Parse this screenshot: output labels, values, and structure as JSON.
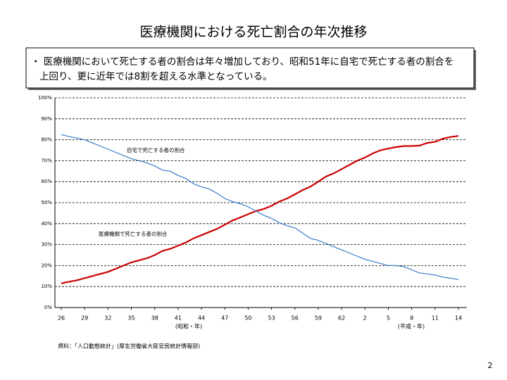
{
  "chart_data": {
    "type": "line",
    "title": "医療機関における死亡割合の年次推移",
    "description": [
      "・ 医療機関において死亡する者の割合は年々増加しており、昭和51年に自宅で死亡する者の割合を",
      "上回り、更に近年では8割を超える水準となっている。"
    ],
    "categories": [
      "26",
      null,
      null,
      "29",
      null,
      null,
      "32",
      null,
      null,
      "35",
      null,
      null,
      "38",
      null,
      null,
      "41",
      null,
      null,
      "44",
      null,
      null,
      "47",
      null,
      null,
      "50",
      null,
      null,
      "53",
      null,
      null,
      "56",
      null,
      null,
      "59",
      null,
      null,
      "62",
      null,
      null,
      "2",
      null,
      null,
      "5",
      null,
      null,
      "8",
      null,
      null,
      "11",
      null,
      null,
      "14"
    ],
    "series": [
      {
        "name": "医療機関で死亡する者の割合",
        "color": "#cc0000",
        "values": [
          11.5,
          12.3,
          13.0,
          14.0,
          15.0,
          16.0,
          17.0,
          18.5,
          20.0,
          21.5,
          22.5,
          23.5,
          25.0,
          27.0,
          28.0,
          29.5,
          31.0,
          33.0,
          34.5,
          36.0,
          37.5,
          39.5,
          41.5,
          43.0,
          44.5,
          46.0,
          47.0,
          48.5,
          50.5,
          52.0,
          54.0,
          56.0,
          57.7,
          60.0,
          62.5,
          64.0,
          66.0,
          68.0,
          70.0,
          71.5,
          73.5,
          75.0,
          75.8,
          76.5,
          77.0,
          77.0,
          77.2,
          78.5,
          79.0,
          80.5,
          81.3,
          81.8
        ]
      },
      {
        "name": "自宅で死亡する者の割合",
        "color": "#3a78c8",
        "values": [
          82.5,
          81.5,
          80.8,
          80.0,
          78.5,
          77.0,
          75.5,
          74.0,
          72.5,
          71.0,
          70.0,
          69.0,
          67.5,
          65.5,
          65.0,
          63.0,
          61.5,
          59.0,
          57.5,
          56.5,
          54.5,
          52.0,
          50.5,
          49.5,
          48.0,
          46.0,
          44.0,
          42.5,
          40.5,
          39.0,
          38.0,
          35.5,
          33.0,
          32.0,
          30.5,
          29.0,
          27.5,
          26.0,
          24.5,
          23.0,
          22.0,
          21.0,
          20.0,
          20.0,
          19.5,
          18.0,
          16.5,
          16.0,
          15.5,
          14.5,
          14.0,
          13.4
        ]
      }
    ],
    "ylim": [
      0,
      100
    ],
    "yticks": [
      {
        "value": 0,
        "label": "0%"
      },
      {
        "value": 10,
        "label": "10%"
      },
      {
        "value": 20,
        "label": "20%"
      },
      {
        "value": 30,
        "label": "30%"
      },
      {
        "value": 40,
        "label": "40%"
      },
      {
        "value": 50,
        "label": "50%"
      },
      {
        "value": 60,
        "label": "60%"
      },
      {
        "value": 70,
        "label": "70%"
      },
      {
        "value": 80,
        "label": "80%"
      },
      {
        "value": 90,
        "label": "90%"
      },
      {
        "value": 100,
        "label": "100%"
      }
    ],
    "grid": true,
    "x_annotations": [
      "(昭和・年)",
      "(平成・年)"
    ],
    "source": "資料：「人口動態統計」(厚生労働省大臣官房統計情報部)",
    "page_number": "2"
  }
}
